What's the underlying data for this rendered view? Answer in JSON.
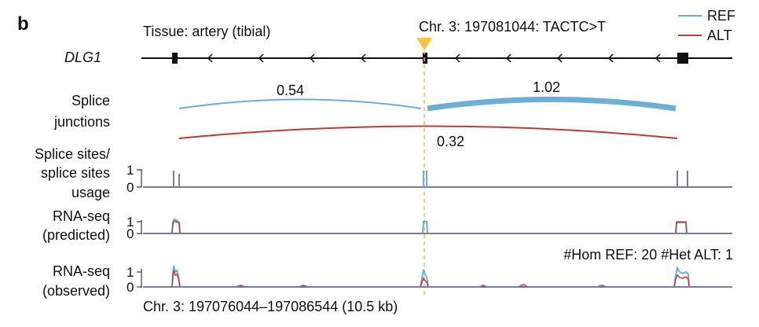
{
  "panel_label": "b",
  "tissue": "Tissue: artery (tibial)",
  "variant": "Chr. 3: 197081044: TACTC>T",
  "legend": [
    {
      "label": "REF",
      "color": "#6baed6"
    },
    {
      "label": "ALT",
      "color": "#c0393b"
    }
  ],
  "gene": "DLG1",
  "row_labels": {
    "junctions": [
      "Splice",
      "junctions"
    ],
    "sites": [
      "Splice sites/",
      "splice sites",
      "usage"
    ],
    "predicted": [
      "RNA-seq",
      "(predicted)"
    ],
    "observed": [
      "RNA-seq",
      "(observed)"
    ]
  },
  "junction_values": {
    "ref_left": "0.54",
    "ref_right": "1.02",
    "alt": "0.32"
  },
  "tick_labels": {
    "one": "1",
    "zero": "0"
  },
  "genotype_counts": "#Hom REF: 20 #Het ALT: 1",
  "coordinates": "Chr. 3: 197076044–197086544 (10.5 kb)",
  "colors": {
    "ref": "#6baed6",
    "alt": "#c0393b",
    "overlap": "#7b7b9a",
    "variant_marker": "#f5c242",
    "axis": "#111111"
  }
}
